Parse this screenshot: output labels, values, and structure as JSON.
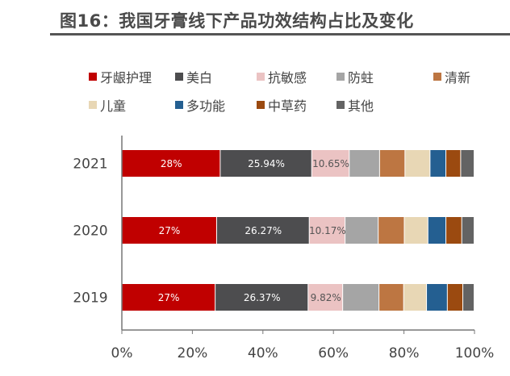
{
  "title": "图16：我国牙膏线下产品功效结构占比及变化",
  "chart_data": {
    "type": "bar",
    "orientation": "horizontal",
    "stacked": "percent",
    "title": "图16：我国牙膏线下产品功效结构占比及变化",
    "categories": [
      "2021",
      "2020",
      "2019"
    ],
    "xlim": [
      0,
      100
    ],
    "x_ticks": [
      "0%",
      "20%",
      "40%",
      "60%",
      "80%",
      "100%"
    ],
    "grid": false,
    "legend_position": "top",
    "series": [
      {
        "name": "牙龈护理",
        "color": "#c00000",
        "values": [
          28,
          27,
          26.6
        ],
        "labels": [
          "28%",
          "27%",
          "27%"
        ],
        "label_color": "#ffffff"
      },
      {
        "name": "美白",
        "color": "#4d4d4f",
        "values": [
          25.94,
          26.27,
          26.37
        ],
        "labels": [
          "25.94%",
          "26.27%",
          "26.37%"
        ],
        "label_color": "#ffffff"
      },
      {
        "name": "抗敏感",
        "color": "#ebc3c3",
        "values": [
          10.65,
          10.17,
          9.82
        ],
        "labels": [
          "10.65%",
          "10.17%",
          "9.82%"
        ],
        "label_color": "#555555"
      },
      {
        "name": "防蛀",
        "color": "#a5a5a5",
        "values": [
          8.6,
          9.4,
          10.3
        ]
      },
      {
        "name": "清新",
        "color": "#bd7642",
        "values": [
          7.2,
          7.4,
          7.0
        ]
      },
      {
        "name": "儿童",
        "color": "#e8d7b5",
        "values": [
          7.1,
          6.7,
          6.5
        ]
      },
      {
        "name": "多功能",
        "color": "#245f91",
        "values": [
          4.5,
          5.1,
          5.9
        ]
      },
      {
        "name": "中草药",
        "color": "#9b4a10",
        "values": [
          4.2,
          4.5,
          4.4
        ]
      },
      {
        "name": "其他",
        "color": "#636363",
        "values": [
          3.8,
          3.5,
          3.2
        ]
      }
    ]
  }
}
